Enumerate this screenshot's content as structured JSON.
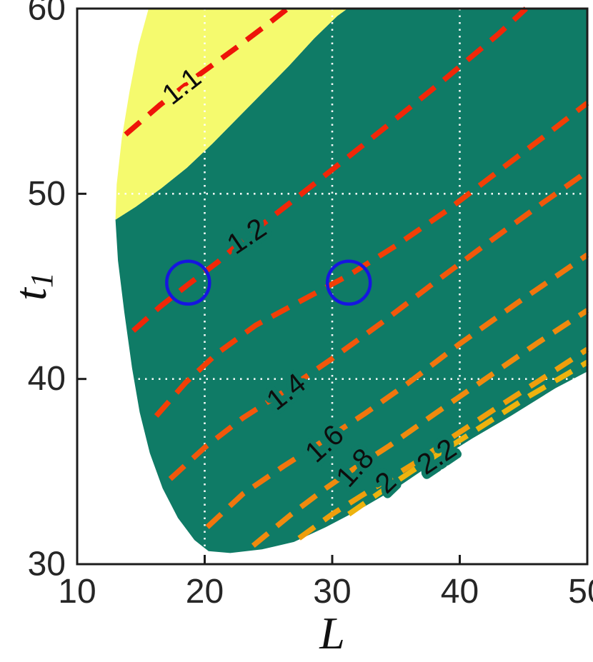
{
  "chart_data": {
    "type": "contour",
    "title": "",
    "xlabel": "L",
    "ylabel": {
      "base": "t",
      "sub": "1"
    },
    "xlim": [
      10,
      50
    ],
    "ylim": [
      30,
      60
    ],
    "xticks": [
      10,
      20,
      30,
      40,
      50
    ],
    "yticks": [
      30,
      40,
      50,
      60
    ],
    "grid": {
      "x": [
        20,
        30,
        40
      ],
      "y": [
        40,
        50
      ]
    },
    "colors": {
      "background": "#ffffff",
      "frame": "#1c1c1c",
      "tick_text": "#262626",
      "grid": "#ffffff",
      "region_teal": "#0F7B66",
      "region_yellow": "#F5FA6E",
      "marker_blue": "#1616E0"
    },
    "regions": [
      {
        "name": "teal-feasible",
        "color": "#0F7B66",
        "points": [
          [
            31.2,
            60
          ],
          [
            50,
            60
          ],
          [
            50,
            40.4
          ],
          [
            47.5,
            39.5
          ],
          [
            44,
            38.0
          ],
          [
            41,
            36.8
          ],
          [
            38,
            35.5
          ],
          [
            35,
            34.1
          ],
          [
            32,
            32.9
          ],
          [
            29.5,
            32.0
          ],
          [
            27,
            31.2
          ],
          [
            24.5,
            30.8
          ],
          [
            22,
            30.6
          ],
          [
            20.3,
            30.7
          ],
          [
            19.2,
            31.3
          ],
          [
            17.9,
            32.5
          ],
          [
            16.7,
            34.1
          ],
          [
            15.7,
            36.0
          ],
          [
            14.9,
            38.2
          ],
          [
            14.3,
            40.6
          ],
          [
            13.7,
            43.6
          ],
          [
            13.2,
            46.4
          ],
          [
            13.0,
            48.6
          ],
          [
            14.6,
            49.3
          ],
          [
            16.6,
            50.3
          ],
          [
            18.6,
            51.4
          ],
          [
            20.6,
            52.7
          ],
          [
            22.6,
            54.1
          ],
          [
            24.6,
            55.5
          ],
          [
            26.6,
            56.9
          ],
          [
            28.6,
            58.4
          ],
          [
            30.4,
            59.6
          ]
        ]
      },
      {
        "name": "yellow-upper-left",
        "color": "#F5FA6E",
        "points": [
          [
            15.6,
            60
          ],
          [
            31.2,
            60
          ],
          [
            30.4,
            59.6
          ],
          [
            28.6,
            58.4
          ],
          [
            26.6,
            56.9
          ],
          [
            24.6,
            55.5
          ],
          [
            22.6,
            54.1
          ],
          [
            20.6,
            52.7
          ],
          [
            18.6,
            51.4
          ],
          [
            16.6,
            50.3
          ],
          [
            14.6,
            49.3
          ],
          [
            13.0,
            48.6
          ],
          [
            13.1,
            50.5
          ],
          [
            13.5,
            53.0
          ],
          [
            14.1,
            55.5
          ],
          [
            14.8,
            58.0
          ]
        ]
      }
    ],
    "contours": [
      {
        "level": 1.1,
        "label": "1.1",
        "color": "#EE1409",
        "label_pos": [
          18.2,
          55.8
        ],
        "label_angle": -38,
        "label_halo": "#F5FA6E",
        "points": [
          [
            13.8,
            53.2
          ],
          [
            16.5,
            54.8
          ],
          [
            19.5,
            56.4
          ],
          [
            22.5,
            57.9
          ],
          [
            25.2,
            59.3
          ],
          [
            26.5,
            60
          ]
        ]
      },
      {
        "level": 1.2,
        "label": "1.2",
        "color": "#F12708",
        "label_pos": [
          23.3,
          47.7
        ],
        "label_angle": -34,
        "label_halo": "#0F7B66",
        "points": [
          [
            14.4,
            42.6
          ],
          [
            16.5,
            43.9
          ],
          [
            18.7,
            45.1
          ],
          [
            21.0,
            46.3
          ],
          [
            23.5,
            47.8
          ],
          [
            26.5,
            49.4
          ],
          [
            30.0,
            51.3
          ],
          [
            34.0,
            53.5
          ],
          [
            38.5,
            56.0
          ],
          [
            43.0,
            58.6
          ],
          [
            45.2,
            60
          ]
        ]
      },
      {
        "level": 1.3,
        "label": "",
        "color": "#F23F06",
        "label_pos": [
          27.5,
          44.2
        ],
        "label_angle": -34,
        "label_halo": "#0F7B66",
        "points": [
          [
            16.2,
            38.0
          ],
          [
            18.5,
            39.8
          ],
          [
            21.0,
            41.4
          ],
          [
            24.0,
            42.9
          ],
          [
            27.5,
            44.2
          ],
          [
            31.3,
            45.6
          ],
          [
            35.0,
            47.2
          ],
          [
            39.0,
            49.1
          ],
          [
            43.0,
            51.2
          ],
          [
            47.0,
            53.3
          ],
          [
            50,
            54.9
          ]
        ]
      },
      {
        "level": 1.4,
        "label": "1.4",
        "color": "#F2570B",
        "label_pos": [
          26.4,
          39.3
        ],
        "label_angle": -38,
        "label_halo": "#0F7B66",
        "points": [
          [
            17.3,
            34.6
          ],
          [
            20.0,
            36.3
          ],
          [
            23.0,
            37.9
          ],
          [
            26.4,
            39.4
          ],
          [
            30.0,
            41.1
          ],
          [
            34.0,
            43.1
          ],
          [
            38.0,
            45.2
          ],
          [
            42.5,
            47.5
          ],
          [
            46.5,
            49.5
          ],
          [
            50,
            51.2
          ]
        ]
      },
      {
        "level": 1.6,
        "label": "1.6",
        "color": "#F1750D",
        "label_pos": [
          29.4,
          36.5
        ],
        "label_angle": -42,
        "label_halo": "#0F7B66",
        "points": [
          [
            20.2,
            32.0
          ],
          [
            23.0,
            33.8
          ],
          [
            26.2,
            35.3
          ],
          [
            29.4,
            36.7
          ],
          [
            32.5,
            38.1
          ],
          [
            36.0,
            39.8
          ],
          [
            40.0,
            41.9
          ],
          [
            44.5,
            44.1
          ],
          [
            50,
            46.7
          ]
        ]
      },
      {
        "level": 1.8,
        "label": "1.8",
        "color": "#F08A0E",
        "label_pos": [
          31.8,
          35.2
        ],
        "label_angle": -48,
        "label_halo": "#0F7B66",
        "points": [
          [
            23.8,
            31.0
          ],
          [
            26.8,
            32.7
          ],
          [
            29.5,
            34.1
          ],
          [
            31.8,
            35.2
          ],
          [
            34.5,
            36.4
          ],
          [
            38.0,
            38.1
          ],
          [
            42.0,
            40.0
          ],
          [
            46.0,
            41.9
          ],
          [
            50,
            43.7
          ]
        ]
      },
      {
        "level": 2,
        "label": "2",
        "color": "#EF9E0C",
        "label_pos": [
          34.2,
          34.4
        ],
        "label_angle": -44,
        "label_halo": "#0F7B66",
        "points": [
          [
            27.4,
            31.4
          ],
          [
            30.0,
            32.7
          ],
          [
            32.3,
            33.7
          ],
          [
            34.2,
            34.5
          ],
          [
            36.8,
            35.6
          ],
          [
            39.5,
            36.9
          ],
          [
            42.8,
            38.4
          ],
          [
            46.2,
            39.9
          ],
          [
            50,
            41.6
          ]
        ]
      },
      {
        "level": 2.2,
        "label": "2.2",
        "color": "#EDB30E",
        "label_pos": [
          38.2,
          35.8
        ],
        "label_angle": -34,
        "label_halo": "#0F7B66",
        "points": [
          [
            31.3,
            32.7
          ],
          [
            33.8,
            33.9
          ],
          [
            36.2,
            35.0
          ],
          [
            38.2,
            35.9
          ],
          [
            40.5,
            36.9
          ],
          [
            43.0,
            38.0
          ],
          [
            45.5,
            39.1
          ],
          [
            48.0,
            40.1
          ],
          [
            50,
            40.9
          ]
        ]
      }
    ],
    "markers": [
      {
        "shape": "circle",
        "x": 18.7,
        "y": 45.2,
        "radius_px": 30,
        "color": "#1616E0"
      },
      {
        "shape": "circle",
        "x": 31.3,
        "y": 45.2,
        "radius_px": 30,
        "color": "#1616E0"
      }
    ]
  }
}
